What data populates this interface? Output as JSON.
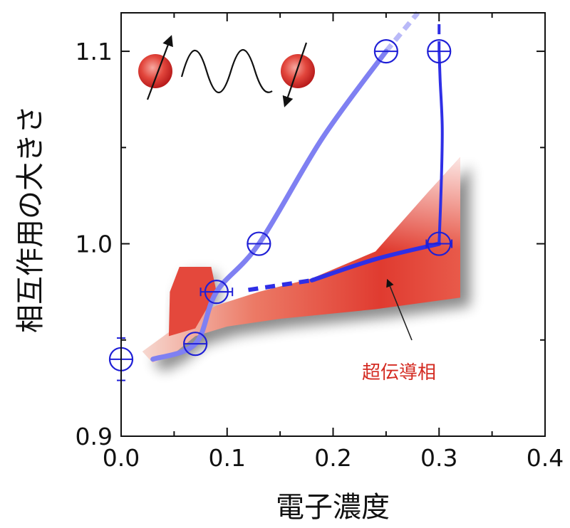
{
  "chart_data": {
    "type": "line",
    "title": "",
    "xlabel": "電子濃度",
    "ylabel": "相互作用の大きさ",
    "xlim": [
      0.0,
      0.4
    ],
    "ylim": [
      0.9,
      1.12
    ],
    "xticks": [
      "0.0",
      "0.1",
      "0.2",
      "0.3",
      "0.4"
    ],
    "yticks": [
      "0.9",
      "1.0",
      "1.1"
    ],
    "grid": false,
    "legend": "none",
    "colors": {
      "light_series": "#7f80f2",
      "dark_series": "#2f2fe6",
      "marker": "#1f1fd6",
      "region": "#e03b30",
      "annotation_text": "#d42b22"
    },
    "annotations": [
      {
        "text": "超伝導相",
        "x": 0.27,
        "y": 0.953,
        "color": "#d42b22"
      }
    ],
    "series": [
      {
        "style": "light-thick",
        "x": [
          0.03,
          0.07,
          0.09,
          0.13,
          0.19,
          0.25
        ],
        "y": [
          0.94,
          0.948,
          0.975,
          1.0,
          1.055,
          1.1
        ],
        "dashed_extension": {
          "x": [
            0.25,
            0.28
          ],
          "y": [
            1.1,
            1.12
          ]
        }
      },
      {
        "style": "dark-vertical",
        "x": [
          0.3,
          0.302,
          0.303,
          0.301,
          0.3
        ],
        "y": [
          1.0,
          1.03,
          1.06,
          1.085,
          1.1
        ],
        "dashed_extension": {
          "x": [
            0.3,
            0.3
          ],
          "y": [
            1.1,
            1.117
          ]
        }
      },
      {
        "style": "dark-thick",
        "x": [
          0.18,
          0.24,
          0.3
        ],
        "y": [
          0.981,
          0.992,
          1.0
        ],
        "dashed_extension": {
          "x": [
            0.12,
            0.18
          ],
          "y": [
            0.976,
            0.981
          ]
        }
      }
    ],
    "markers": [
      {
        "x": 0.0,
        "y": 0.94,
        "xerr": 0.0,
        "yerr": 0.011
      },
      {
        "x": 0.07,
        "y": 0.948,
        "xerr": 0.0,
        "yerr": 0.0
      },
      {
        "x": 0.09,
        "y": 0.975,
        "xerr": 0.015,
        "yerr": 0.0
      },
      {
        "x": 0.13,
        "y": 1.0,
        "xerr": 0.0,
        "yerr": 0.0
      },
      {
        "x": 0.25,
        "y": 1.1,
        "xerr": 0.0,
        "yerr": 0.0
      },
      {
        "x": 0.3,
        "y": 1.1,
        "xerr": 0.0,
        "yerr": 0.0
      },
      {
        "x": 0.3,
        "y": 1.0,
        "xerr": 0.012,
        "yerr": 0.0
      }
    ],
    "vertical_line": {
      "x": 0.0,
      "y": [
        0.9,
        0.94
      ]
    },
    "region": {
      "upper": [
        [
          0.02,
          0.944
        ],
        [
          0.05,
          0.956
        ],
        [
          0.07,
          0.962
        ],
        [
          0.09,
          0.968
        ],
        [
          0.13,
          0.975
        ],
        [
          0.18,
          0.982
        ],
        [
          0.24,
          0.996
        ],
        [
          0.29,
          1.027
        ],
        [
          0.32,
          1.045
        ],
        [
          0.32,
          0.972
        ]
      ],
      "lower": [
        [
          0.32,
          0.972
        ],
        [
          0.24,
          0.966
        ],
        [
          0.15,
          0.961
        ],
        [
          0.1,
          0.957
        ],
        [
          0.07,
          0.952
        ],
        [
          0.05,
          0.943
        ],
        [
          0.03,
          0.938
        ],
        [
          0.02,
          0.944
        ]
      ],
      "bump": [
        [
          0.045,
          0.952
        ],
        [
          0.046,
          0.975
        ],
        [
          0.055,
          0.988
        ],
        [
          0.085,
          0.988
        ],
        [
          0.09,
          0.975
        ],
        [
          0.07,
          0.956
        ]
      ]
    }
  }
}
